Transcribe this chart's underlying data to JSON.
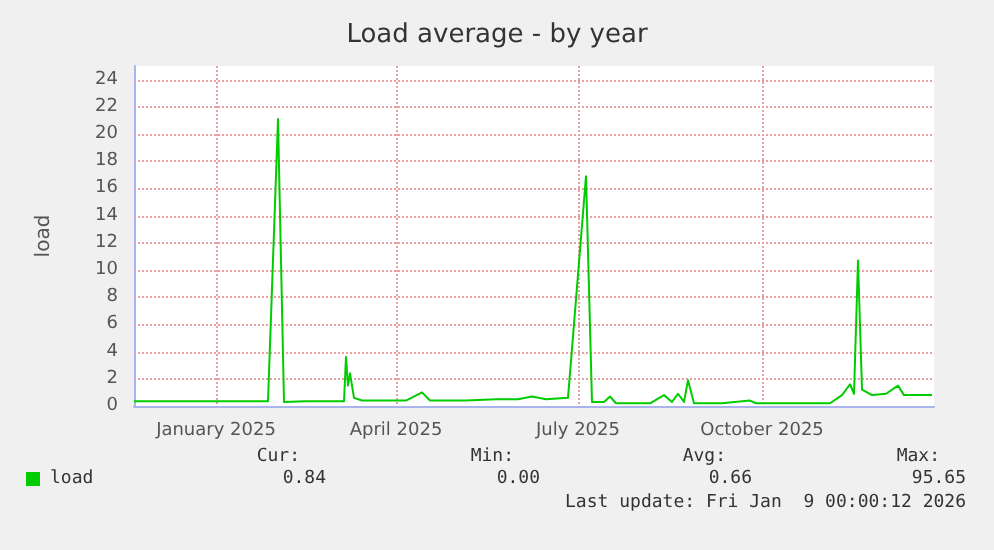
{
  "chart_data": {
    "type": "line",
    "title": "Load average - by year",
    "ylabel": "load",
    "x": [
      "2024-12-05",
      "2024-12-20",
      "2025-01-05",
      "2025-01-20",
      "2025-02-10",
      "2025-02-15",
      "2025-02-18",
      "2025-03-01",
      "2025-03-20",
      "2025-03-21",
      "2025-03-22",
      "2025-03-23",
      "2025-03-25",
      "2025-03-29",
      "2025-04-20",
      "2025-04-28",
      "2025-05-02",
      "2025-05-20",
      "2025-06-04",
      "2025-06-15",
      "2025-06-22",
      "2025-06-29",
      "2025-07-10",
      "2025-07-19",
      "2025-07-22",
      "2025-07-28",
      "2025-07-31",
      "2025-08-03",
      "2025-08-20",
      "2025-08-27",
      "2025-08-31",
      "2025-09-03",
      "2025-09-06",
      "2025-09-08",
      "2025-09-11",
      "2025-09-25",
      "2025-10-09",
      "2025-10-12",
      "2025-11-18",
      "2025-11-24",
      "2025-11-28",
      "2025-11-30",
      "2025-12-02",
      "2025-12-04",
      "2025-12-09",
      "2025-12-16",
      "2025-12-22",
      "2025-12-25",
      "2026-01-08"
    ],
    "series": [
      {
        "name": "load",
        "color": "#00cc00",
        "values": [
          0.35,
          0.35,
          0.35,
          0.35,
          0.35,
          21.1,
          0.3,
          0.35,
          0.35,
          3.6,
          1.5,
          2.4,
          0.6,
          0.4,
          0.4,
          1.0,
          0.4,
          0.4,
          0.5,
          0.5,
          0.7,
          0.5,
          0.6,
          16.9,
          0.3,
          0.3,
          0.7,
          0.2,
          0.2,
          0.8,
          0.3,
          0.9,
          0.3,
          1.9,
          0.2,
          0.2,
          0.4,
          0.2,
          0.2,
          0.8,
          1.6,
          0.9,
          10.7,
          1.2,
          0.8,
          0.9,
          1.5,
          0.8,
          0.8
        ]
      }
    ],
    "xlim": [
      "2024-12-05",
      "2026-01-09"
    ],
    "xticks": [
      {
        "value": "2025-01-15",
        "label": "January 2025"
      },
      {
        "value": "2025-04-15",
        "label": "April 2025"
      },
      {
        "value": "2025-07-15",
        "label": "July 2025"
      },
      {
        "value": "2025-10-15",
        "label": "October 2025"
      }
    ],
    "ylim": [
      0,
      25
    ],
    "yticks": [
      0,
      2,
      4,
      6,
      8,
      10,
      12,
      14,
      16,
      18,
      20,
      22,
      24
    ],
    "grid": true,
    "legend": "bottom left",
    "marker": "none",
    "line_style": "solid",
    "annotations": [
      "Cur:",
      "0.84",
      "Min:",
      "0.00",
      "Avg:",
      "0.66",
      "Max:",
      "95.65",
      "Last update: Fri Jan  9 00:00:12 2026"
    ]
  }
}
